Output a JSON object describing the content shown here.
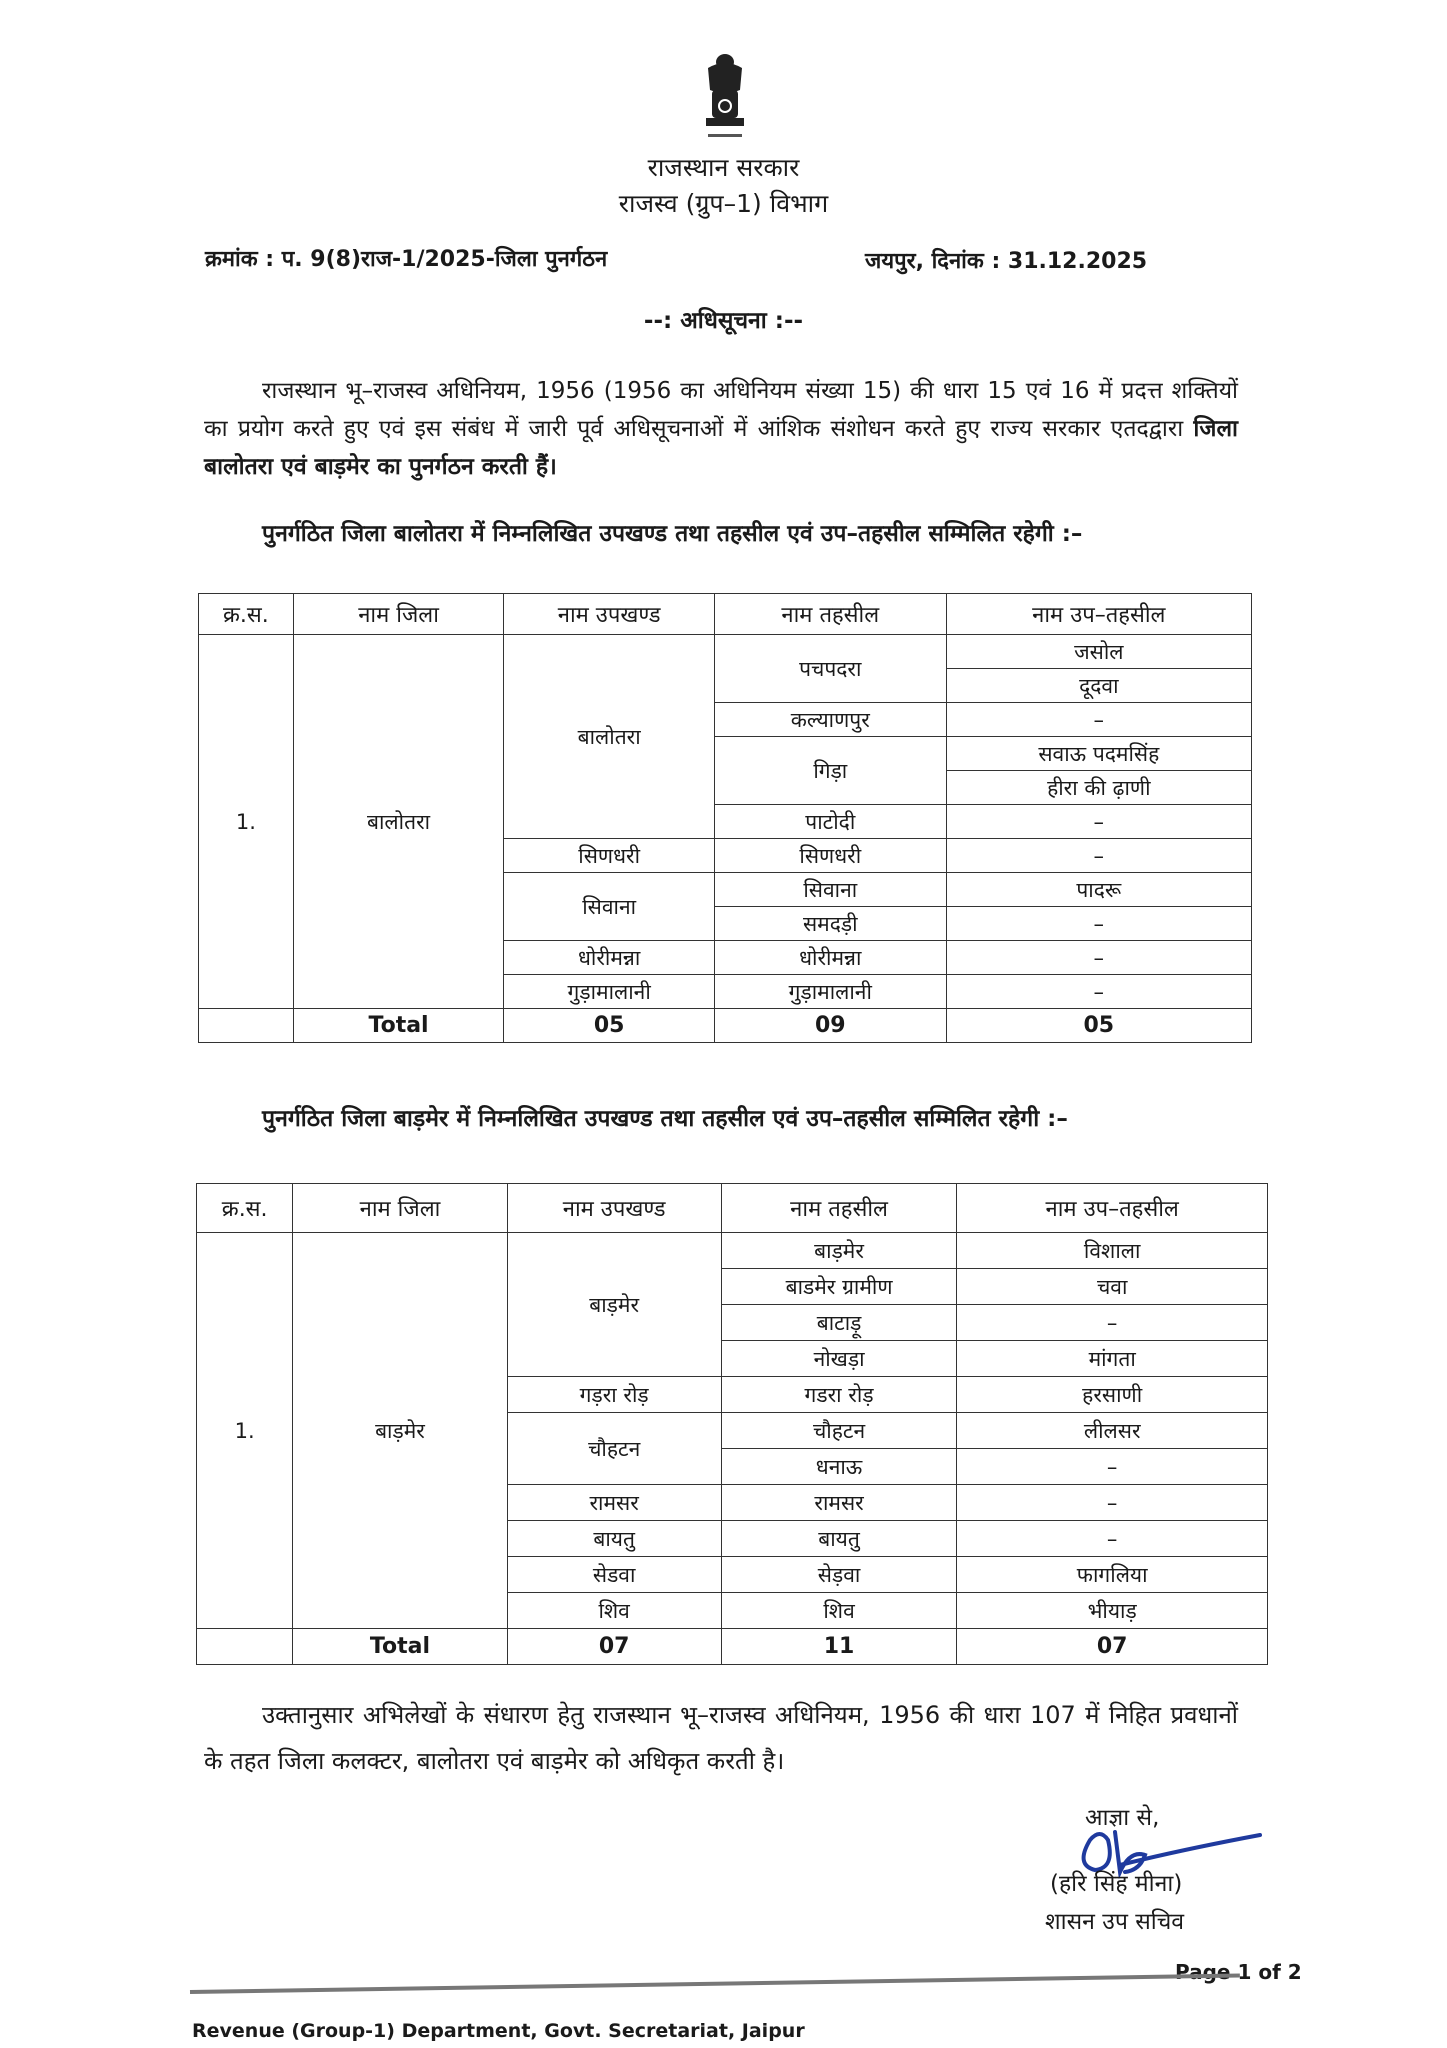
{
  "header": {
    "emblem_motto": "सत्यमेव जयते",
    "government": "राजस्थान सरकार",
    "department": "राजस्व (ग्रुप–1) विभाग",
    "reference": "क्रमांक : प. 9(8)राज-1/2025-जिला पुनर्गठन",
    "place_date": "जयपुर, दिनांक : 31.12.2025",
    "notification_title": "--: अधिसूचना :--"
  },
  "body": {
    "para1_plain": "राजस्थान भू–राजस्व अधिनियम, 1956 (1956 का अधिनियम संख्या 15) की धारा 15 एवं 16 में प्रदत्त शक्तियों का प्रयोग करते हुए एवं इस संबंध में जारी पूर्व अधिसूचनाओं में आंशिक संशोधन करते हुए राज्य सरकार एतदद्वारा ",
    "para1_bold": "जिला बालोतरा एवं बाड़मेर का पुनर्गठन करती हैं।",
    "para2": "पुनर्गठित जिला बालोतरा में निम्नलिखित उपखण्ड तथा तहसील एवं उप–तहसील सम्मिलित रहेगी :–",
    "para3": "पुनर्गठित जिला बाड़मेर में निम्नलिखित उपखण्ड तथा तहसील एवं उप–तहसील सम्मिलित रहेगी :–",
    "para4": "उक्तानुसार अभिलेखों के संधारण हेतु राजस्थान भू–राजस्व अधिनियम, 1956 की धारा 107 में निहित प्रवधानों के तहत जिला कलक्टर, बालोतरा एवं बाड़मेर को अधिकृत करती है।"
  },
  "table_headers": [
    "क्र.स.",
    "नाम जिला",
    "नाम उपखण्ड",
    "नाम तहसील",
    "नाम उप–तहसील"
  ],
  "tables": [
    {
      "serial": "1.",
      "district": "बालोतरा",
      "subdivisions": [
        {
          "name": "बालोतरा",
          "tehsils": [
            {
              "name": "पचपदरा",
              "sub_tehsils": [
                "जसोल",
                "दूदवा"
              ]
            },
            {
              "name": "कल्याणपुर",
              "sub_tehsils": [
                "–"
              ]
            },
            {
              "name": "गिड़ा",
              "sub_tehsils": [
                "सवाऊ पदमसिंह",
                "हीरा की ढ़ाणी"
              ]
            },
            {
              "name": "पाटोदी",
              "sub_tehsils": [
                "–"
              ]
            }
          ]
        },
        {
          "name": "सिणधरी",
          "tehsils": [
            {
              "name": "सिणधरी",
              "sub_tehsils": [
                "–"
              ]
            }
          ]
        },
        {
          "name": "सिवाना",
          "tehsils": [
            {
              "name": "सिवाना",
              "sub_tehsils": [
                "पादरू"
              ]
            },
            {
              "name": "समदड़ी",
              "sub_tehsils": [
                "–"
              ]
            }
          ]
        },
        {
          "name": "धोरीमन्ना",
          "tehsils": [
            {
              "name": "धोरीमन्ना",
              "sub_tehsils": [
                "–"
              ]
            }
          ]
        },
        {
          "name": "गुड़ामालानी",
          "tehsils": [
            {
              "name": "गुड़ामालानी",
              "sub_tehsils": [
                "–"
              ]
            }
          ]
        }
      ],
      "total": {
        "label": "Total",
        "subdivisions": "05",
        "tehsils": "09",
        "sub_tehsils": "05"
      }
    },
    {
      "serial": "1.",
      "district": "बाड़मेर",
      "subdivisions": [
        {
          "name": "बाड़मेर",
          "tehsils": [
            {
              "name": "बाड़मेर",
              "sub_tehsils": [
                "विशाला"
              ]
            },
            {
              "name": "बाडमेर ग्रामीण",
              "sub_tehsils": [
                "चवा"
              ]
            },
            {
              "name": "बाटाड़ू",
              "sub_tehsils": [
                "–"
              ]
            },
            {
              "name": "नोखड़ा",
              "sub_tehsils": [
                "मांगता"
              ]
            }
          ]
        },
        {
          "name": "गड़रा रोड़",
          "tehsils": [
            {
              "name": "गडरा रोड़",
              "sub_tehsils": [
                "हरसाणी"
              ]
            }
          ]
        },
        {
          "name": "चौहटन",
          "tehsils": [
            {
              "name": "चौहटन",
              "sub_tehsils": [
                "लीलसर"
              ]
            },
            {
              "name": "धनाऊ",
              "sub_tehsils": [
                "–"
              ]
            }
          ]
        },
        {
          "name": "रामसर",
          "tehsils": [
            {
              "name": "रामसर",
              "sub_tehsils": [
                "–"
              ]
            }
          ]
        },
        {
          "name": "बायतु",
          "tehsils": [
            {
              "name": "बायतु",
              "sub_tehsils": [
                "–"
              ]
            }
          ]
        },
        {
          "name": "सेडवा",
          "tehsils": [
            {
              "name": "सेड़वा",
              "sub_tehsils": [
                "फागलिया"
              ]
            }
          ]
        },
        {
          "name": "शिव",
          "tehsils": [
            {
              "name": "शिव",
              "sub_tehsils": [
                "भीयाड़"
              ]
            }
          ]
        }
      ],
      "total": {
        "label": "Total",
        "subdivisions": "07",
        "tehsils": "11",
        "sub_tehsils": "07"
      }
    }
  ],
  "signature": {
    "order_line": "आज्ञा से,",
    "name": "(हरि सिंह मीना)",
    "designation": "शासन उप सचिव",
    "ink_color": "#1f3a9e"
  },
  "footer": {
    "page": "Page 1 of 2",
    "address": "Revenue (Group-1) Department, Govt. Secretariat, Jaipur"
  }
}
